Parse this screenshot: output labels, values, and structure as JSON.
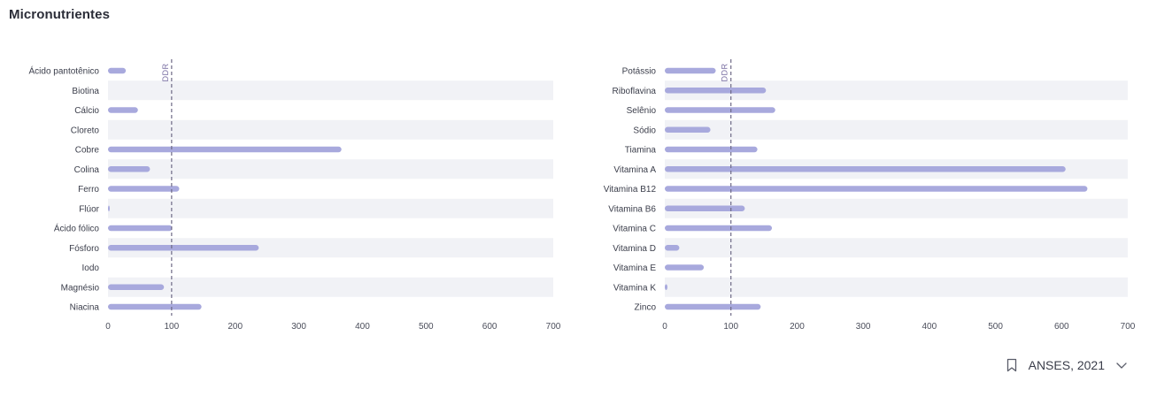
{
  "page": {
    "title": "Micronutrientes"
  },
  "source": {
    "label": "ANSES, 2021",
    "bookmark_icon": "bookmark-icon",
    "chevron_icon": "chevron-down-icon"
  },
  "colors": {
    "bar": "#a8a9dd",
    "band": "#f1f2f6",
    "reference_line": "#6e6a86"
  },
  "chart_data": [
    {
      "type": "bar",
      "orientation": "horizontal",
      "categories": [
        "Ácido pantotênico",
        "Biotina",
        "Cálcio",
        "Cloreto",
        "Cobre",
        "Colina",
        "Ferro",
        "Flúor",
        "Ácido fólico",
        "Fósforo",
        "Iodo",
        "Magnésio",
        "Niacina"
      ],
      "values": [
        28,
        0,
        47,
        0,
        367,
        66,
        112,
        1,
        101,
        237,
        0,
        88,
        147
      ],
      "xlim": [
        0,
        700
      ],
      "xticks": [
        0,
        100,
        200,
        300,
        400,
        500,
        600,
        700
      ],
      "reference": {
        "label": "DDR",
        "value": 100
      }
    },
    {
      "type": "bar",
      "orientation": "horizontal",
      "categories": [
        "Potássio",
        "Riboflavina",
        "Selênio",
        "Sódio",
        "Tiamina",
        "Vitamina A",
        "Vitamina B12",
        "Vitamina B6",
        "Vitamina C",
        "Vitamina D",
        "Vitamina E",
        "Vitamina K",
        "Zinco"
      ],
      "values": [
        77,
        153,
        167,
        69,
        140,
        606,
        639,
        121,
        162,
        22,
        59,
        4,
        145
      ],
      "xlim": [
        0,
        700
      ],
      "xticks": [
        0,
        100,
        200,
        300,
        400,
        500,
        600,
        700
      ],
      "reference": {
        "label": "DDR",
        "value": 100
      }
    }
  ]
}
